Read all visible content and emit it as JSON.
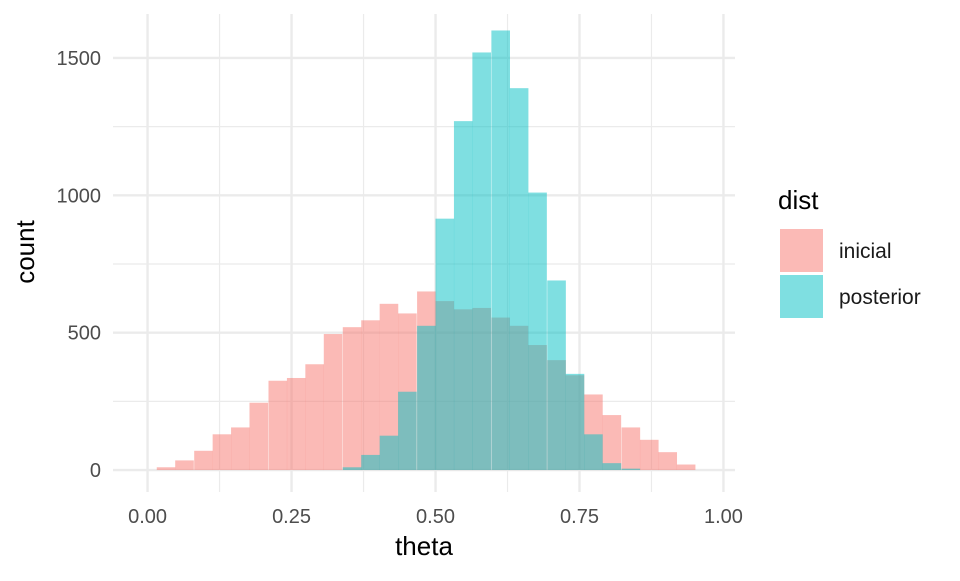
{
  "chart_data": {
    "type": "bar",
    "subtype": "histogram",
    "xlabel": "theta",
    "ylabel": "count",
    "xlim": [
      -0.06,
      1.02
    ],
    "ylim": [
      -80,
      1660
    ],
    "x_ticks": [
      0.0,
      0.25,
      0.5,
      0.75,
      1.0
    ],
    "x_tick_labels": [
      "0.00",
      "0.25",
      "0.50",
      "0.75",
      "1.00"
    ],
    "y_ticks": [
      0,
      500,
      1000,
      1500
    ],
    "y_tick_labels": [
      "0",
      "500",
      "1000",
      "1500"
    ],
    "grid": true,
    "bin_width": 0.0323,
    "bin_starts": [
      0.016,
      0.048,
      0.081,
      0.113,
      0.145,
      0.177,
      0.21,
      0.242,
      0.274,
      0.306,
      0.339,
      0.371,
      0.403,
      0.435,
      0.468,
      0.5,
      0.532,
      0.564,
      0.597,
      0.629,
      0.661,
      0.694,
      0.726,
      0.758,
      0.79,
      0.823,
      0.855,
      0.887,
      0.919,
      0.952
    ],
    "legend": {
      "title": "dist",
      "position": "right",
      "entries": [
        "inicial",
        "posterior"
      ]
    },
    "series": [
      {
        "name": "inicial",
        "color": "#F8766D",
        "values": [
          10,
          35,
          70,
          130,
          155,
          245,
          325,
          335,
          385,
          495,
          520,
          545,
          605,
          570,
          650,
          615,
          585,
          590,
          555,
          525,
          455,
          400,
          345,
          275,
          200,
          155,
          110,
          65,
          20,
          0
        ]
      },
      {
        "name": "posterior",
        "color": "#00BFC4",
        "values": [
          0,
          0,
          0,
          0,
          0,
          0,
          0,
          0,
          0,
          0,
          10,
          55,
          125,
          285,
          525,
          915,
          1270,
          1520,
          1600,
          1390,
          1010,
          690,
          350,
          130,
          25,
          5,
          0,
          0,
          0,
          0
        ]
      }
    ]
  }
}
